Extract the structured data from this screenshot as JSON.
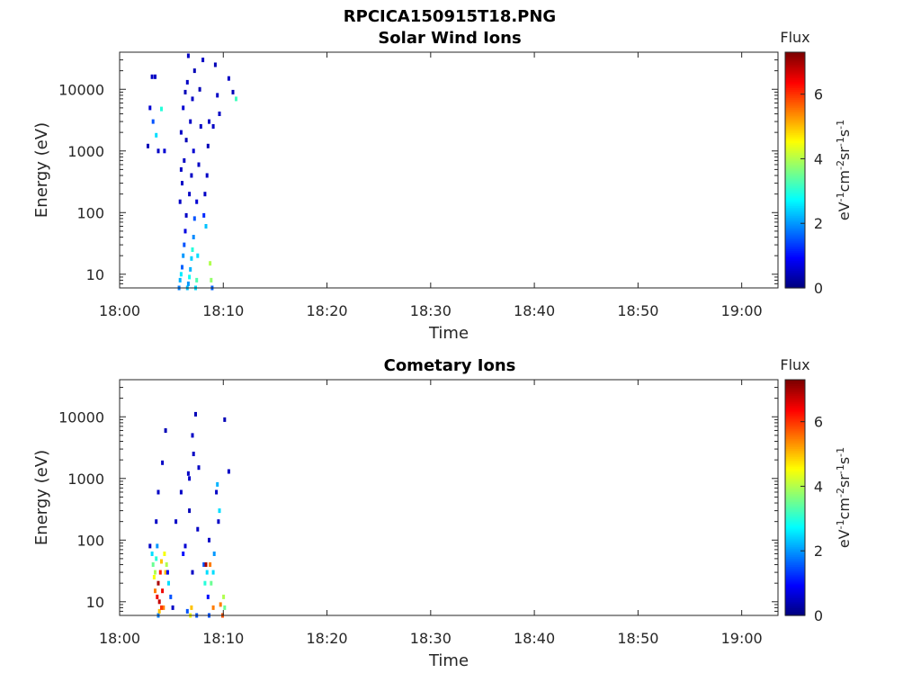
{
  "figure_title": "RPCICA150915T18.PNG",
  "chart_data": [
    {
      "type": "heatmap",
      "title": "Solar Wind Ions",
      "xlabel": "Time",
      "ylabel": "Energy (eV)",
      "xticks": [
        "18:00",
        "18:10",
        "18:20",
        "18:30",
        "18:40",
        "18:50",
        "19:00"
      ],
      "xlim_minutes": [
        0,
        63.5
      ],
      "yticks": [
        "10",
        "100",
        "1000",
        "10000"
      ],
      "yscale": "log",
      "ylim": [
        6,
        40000
      ],
      "colorbar": {
        "title": "Flux",
        "ticks": [
          "0",
          "2",
          "4",
          "6"
        ],
        "range": [
          0,
          7.3
        ],
        "colormap": "jet"
      },
      "units": {
        "base": "eV",
        "s1": "-1",
        "b2": "cm",
        "s2": "-2",
        "b3": "sr",
        "s3": "-1",
        "b4": "s",
        "s4": "-1"
      },
      "cells": [
        [
          3.0,
          16000,
          0.5
        ],
        [
          3.3,
          16000,
          0.5
        ],
        [
          2.8,
          5000,
          0.6
        ],
        [
          3.1,
          3000,
          1.5
        ],
        [
          2.6,
          1200,
          0.4
        ],
        [
          3.4,
          1800,
          2.5
        ],
        [
          3.6,
          1000,
          0.5
        ],
        [
          3.9,
          4800,
          3.0
        ],
        [
          4.2,
          1000,
          0.6
        ],
        [
          5.6,
          6,
          1.8
        ],
        [
          5.7,
          8,
          2.2
        ],
        [
          5.8,
          10,
          2.6
        ],
        [
          5.9,
          13,
          1.6
        ],
        [
          6.0,
          20,
          2.0
        ],
        [
          6.1,
          30,
          1.5
        ],
        [
          6.2,
          50,
          0.7
        ],
        [
          6.3,
          90,
          0.5
        ],
        [
          5.7,
          150,
          0.5
        ],
        [
          5.9,
          300,
          0.5
        ],
        [
          6.1,
          700,
          0.5
        ],
        [
          5.8,
          2000,
          0.5
        ],
        [
          6.0,
          5000,
          0.6
        ],
        [
          6.2,
          9000,
          0.4
        ],
        [
          6.4,
          13000,
          0.5
        ],
        [
          5.8,
          500,
          0.5
        ],
        [
          6.3,
          1500,
          0.4
        ],
        [
          6.4,
          6,
          2.3
        ],
        [
          6.5,
          7,
          2.0
        ],
        [
          6.6,
          9,
          2.8
        ],
        [
          6.7,
          12,
          2.2
        ],
        [
          6.8,
          18,
          2.4
        ],
        [
          6.9,
          25,
          3.0
        ],
        [
          7.0,
          40,
          1.9
        ],
        [
          7.1,
          80,
          1.5
        ],
        [
          6.6,
          200,
          0.5
        ],
        [
          6.8,
          400,
          0.5
        ],
        [
          7.0,
          1000,
          0.6
        ],
        [
          6.7,
          3000,
          0.5
        ],
        [
          6.9,
          7000,
          0.5
        ],
        [
          7.1,
          20000,
          0.4
        ],
        [
          6.5,
          35000,
          0.5
        ],
        [
          7.2,
          6,
          2.5
        ],
        [
          7.3,
          8,
          3.3
        ],
        [
          7.4,
          20,
          2.5
        ],
        [
          7.3,
          150,
          0.6
        ],
        [
          7.5,
          600,
          0.5
        ],
        [
          7.7,
          2500,
          0.5
        ],
        [
          7.6,
          10000,
          0.4
        ],
        [
          7.9,
          30000,
          0.5
        ],
        [
          8.0,
          90,
          1.2
        ],
        [
          8.1,
          200,
          0.5
        ],
        [
          8.2,
          60,
          2.3
        ],
        [
          8.3,
          400,
          0.5
        ],
        [
          8.4,
          1200,
          0.4
        ],
        [
          8.5,
          3000,
          0.5
        ],
        [
          8.6,
          15,
          4.0
        ],
        [
          8.7,
          8,
          3.8
        ],
        [
          8.8,
          6,
          1.6
        ],
        [
          8.9,
          2500,
          0.5
        ],
        [
          9.1,
          25000,
          0.4
        ],
        [
          9.3,
          8000,
          0.5
        ],
        [
          9.5,
          4000,
          0.5
        ],
        [
          10.4,
          15000,
          0.5
        ],
        [
          10.8,
          9000,
          0.4
        ],
        [
          11.1,
          7000,
          3.2
        ]
      ]
    },
    {
      "type": "heatmap",
      "title": "Cometary Ions",
      "xlabel": "Time",
      "ylabel": "Energy (eV)",
      "xticks": [
        "18:00",
        "18:10",
        "18:20",
        "18:30",
        "18:40",
        "18:50",
        "19:00"
      ],
      "xlim_minutes": [
        0,
        63.5
      ],
      "yticks": [
        "10",
        "100",
        "1000",
        "10000"
      ],
      "yscale": "log",
      "ylim": [
        6,
        40000
      ],
      "colorbar": {
        "title": "Flux",
        "ticks": [
          "0",
          "2",
          "4",
          "6"
        ],
        "range": [
          0,
          7.3
        ],
        "colormap": "jet"
      },
      "units": {
        "base": "eV",
        "s1": "-1",
        "b2": "cm",
        "s2": "-2",
        "b3": "sr",
        "s3": "-1",
        "b4": "s",
        "s4": "-1"
      },
      "cells": [
        [
          2.8,
          80,
          0.5
        ],
        [
          3.0,
          60,
          2.5
        ],
        [
          3.1,
          40,
          3.5
        ],
        [
          3.2,
          25,
          4.5
        ],
        [
          3.3,
          15,
          5.5
        ],
        [
          3.5,
          12,
          6.5
        ],
        [
          3.6,
          20,
          7.0
        ],
        [
          3.7,
          10,
          6.8
        ],
        [
          3.8,
          30,
          6.2
        ],
        [
          3.9,
          45,
          5.0
        ],
        [
          4.0,
          15,
          6.5
        ],
        [
          4.1,
          8,
          5.5
        ],
        [
          4.2,
          60,
          4.5
        ],
        [
          4.3,
          30,
          5.0
        ],
        [
          4.4,
          40,
          4.0
        ],
        [
          3.4,
          200,
          0.5
        ],
        [
          3.6,
          600,
          0.5
        ],
        [
          4.0,
          1800,
          0.5
        ],
        [
          4.3,
          6000,
          0.4
        ],
        [
          3.3,
          30,
          4.0
        ],
        [
          3.4,
          50,
          3.0
        ],
        [
          3.5,
          80,
          2.0
        ],
        [
          3.6,
          6,
          1.8
        ],
        [
          3.7,
          7,
          5.0
        ],
        [
          3.9,
          8,
          6.0
        ],
        [
          4.5,
          30,
          0.8
        ],
        [
          4.6,
          20,
          2.5
        ],
        [
          4.8,
          12,
          1.5
        ],
        [
          5.0,
          8,
          0.5
        ],
        [
          5.3,
          200,
          0.5
        ],
        [
          5.8,
          600,
          0.5
        ],
        [
          6.0,
          60,
          1.0
        ],
        [
          6.2,
          80,
          0.6
        ],
        [
          6.4,
          7,
          1.5
        ],
        [
          6.5,
          1200,
          0.5
        ],
        [
          6.6,
          300,
          0.4
        ],
        [
          6.7,
          6,
          4.5
        ],
        [
          6.8,
          8,
          5.0
        ],
        [
          6.9,
          30,
          0.5
        ],
        [
          7.0,
          2500,
          0.5
        ],
        [
          7.2,
          11000,
          0.4
        ],
        [
          7.5,
          1500,
          0.5
        ],
        [
          7.3,
          6,
          1.5
        ],
        [
          7.4,
          150,
          0.5
        ],
        [
          6.9,
          5000,
          0.5
        ],
        [
          6.6,
          1000,
          0.5
        ],
        [
          8.0,
          40,
          1.5
        ],
        [
          8.1,
          20,
          3.0
        ],
        [
          8.2,
          40,
          7.0
        ],
        [
          8.3,
          30,
          2.5
        ],
        [
          8.4,
          12,
          1.0
        ],
        [
          8.5,
          100,
          0.5
        ],
        [
          8.6,
          40,
          5.5
        ],
        [
          8.7,
          20,
          3.5
        ],
        [
          8.9,
          30,
          2.5
        ],
        [
          9.0,
          60,
          2.0
        ],
        [
          9.2,
          600,
          0.5
        ],
        [
          9.4,
          200,
          0.5
        ],
        [
          9.6,
          9,
          5.5
        ],
        [
          9.8,
          6,
          5.8
        ],
        [
          9.9,
          12,
          4.0
        ],
        [
          10.0,
          8,
          3.5
        ],
        [
          9.3,
          800,
          2.2
        ],
        [
          9.5,
          300,
          2.5
        ],
        [
          10.0,
          9000,
          0.4
        ],
        [
          10.4,
          1300,
          0.5
        ],
        [
          8.5,
          6,
          1.5
        ],
        [
          8.9,
          8,
          5.5
        ]
      ]
    }
  ]
}
